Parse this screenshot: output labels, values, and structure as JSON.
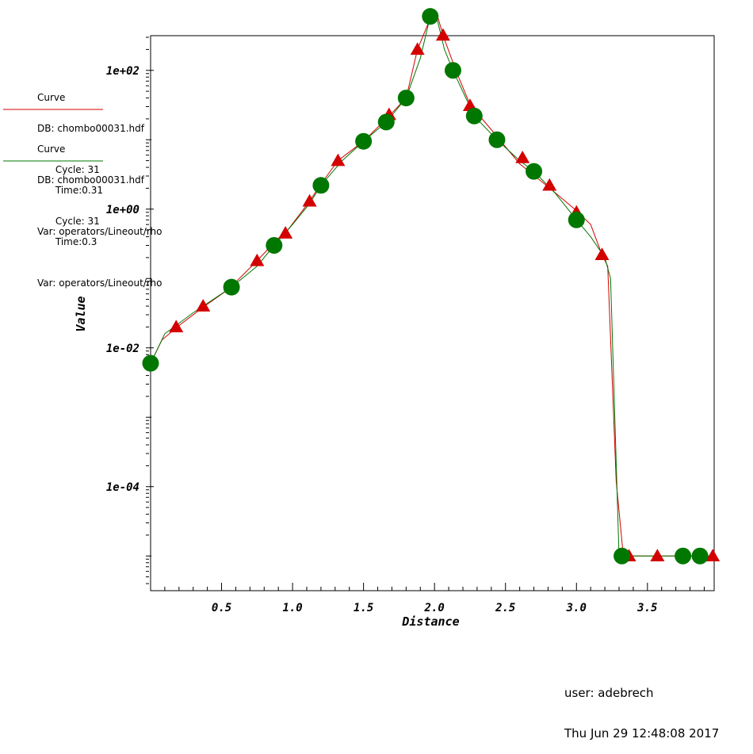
{
  "legend": {
    "entries": [
      {
        "title": "Curve",
        "db": "DB: chombo00031.hdf",
        "cycle": "Cycle: 31",
        "time": "Time:0.31",
        "var": "Var: operators/Lineout/rho",
        "color": "#d40000"
      },
      {
        "title": "Curve",
        "db": "DB: chombo00031.hdf",
        "cycle": "Cycle: 31",
        "time": "Time:0.3",
        "var": "Var: operators/Lineout/rho",
        "color": "#007700"
      }
    ]
  },
  "footer": {
    "user": "user: adebrech",
    "timestamp": "Thu Jun 29 12:48:08 2017"
  },
  "chart_data": {
    "type": "line",
    "xlabel": "Distance",
    "ylabel": "Value",
    "xlim": [
      0.0,
      3.97
    ],
    "ylim_log10": [
      -5.5,
      2.5
    ],
    "y_scale": "log",
    "x_ticks": [
      "0.5",
      "1.0",
      "1.5",
      "2.0",
      "2.5",
      "3.0",
      "3.5"
    ],
    "x_tick_values": [
      0.5,
      1.0,
      1.5,
      2.0,
      2.5,
      3.0,
      3.5
    ],
    "y_ticks": [
      "1e+02",
      "1e+00",
      "1e-02",
      "1e-04"
    ],
    "y_tick_values": [
      100,
      1,
      0.01,
      0.0001
    ],
    "series": [
      {
        "color": "#d40000",
        "marker": "triangle",
        "line": [
          [
            0.0,
            0.006
          ],
          [
            0.08,
            0.013
          ],
          [
            0.2,
            0.021
          ],
          [
            0.38,
            0.04
          ],
          [
            0.55,
            0.07
          ],
          [
            0.75,
            0.18
          ],
          [
            0.9,
            0.38
          ],
          [
            0.95,
            0.45
          ],
          [
            1.12,
            1.3
          ],
          [
            1.2,
            2.3
          ],
          [
            1.32,
            5
          ],
          [
            1.5,
            9.5
          ],
          [
            1.68,
            22
          ],
          [
            1.8,
            40
          ],
          [
            1.88,
            200
          ],
          [
            1.97,
            560
          ],
          [
            2.02,
            620
          ],
          [
            2.06,
            320
          ],
          [
            2.15,
            100
          ],
          [
            2.25,
            32
          ],
          [
            2.4,
            14
          ],
          [
            2.6,
            4.5
          ],
          [
            2.8,
            2.1
          ],
          [
            3.0,
            0.95
          ],
          [
            3.1,
            0.6
          ],
          [
            3.18,
            0.22
          ],
          [
            3.22,
            0.15
          ],
          [
            3.28,
            0.00012
          ],
          [
            3.33,
            1e-05
          ],
          [
            3.6,
            1e-05
          ],
          [
            3.97,
            1e-05
          ]
        ],
        "markers": [
          [
            0.18,
            0.02
          ],
          [
            0.37,
            0.04
          ],
          [
            0.75,
            0.18
          ],
          [
            0.95,
            0.45
          ],
          [
            1.12,
            1.3
          ],
          [
            1.32,
            5
          ],
          [
            1.68,
            23
          ],
          [
            1.88,
            200
          ],
          [
            2.06,
            320
          ],
          [
            2.25,
            31
          ],
          [
            2.62,
            5.5
          ],
          [
            2.81,
            2.2
          ],
          [
            3.0,
            0.9
          ],
          [
            3.18,
            0.22
          ],
          [
            3.37,
            1e-05
          ],
          [
            3.57,
            1e-05
          ],
          [
            3.96,
            1e-05
          ]
        ]
      },
      {
        "color": "#007700",
        "marker": "circle",
        "line": [
          [
            0.0,
            0.006
          ],
          [
            0.1,
            0.016
          ],
          [
            0.3,
            0.032
          ],
          [
            0.57,
            0.075
          ],
          [
            0.75,
            0.15
          ],
          [
            0.87,
            0.3
          ],
          [
            1.0,
            0.6
          ],
          [
            1.12,
            1.2
          ],
          [
            1.2,
            2.2
          ],
          [
            1.35,
            5
          ],
          [
            1.5,
            9.5
          ],
          [
            1.66,
            18
          ],
          [
            1.8,
            40
          ],
          [
            1.9,
            150
          ],
          [
            1.97,
            600
          ],
          [
            2.02,
            530
          ],
          [
            2.07,
            200
          ],
          [
            2.13,
            100
          ],
          [
            2.28,
            22
          ],
          [
            2.44,
            10
          ],
          [
            2.6,
            5
          ],
          [
            2.7,
            3.5
          ],
          [
            2.85,
            1.7
          ],
          [
            3.0,
            0.7
          ],
          [
            3.1,
            0.4
          ],
          [
            3.2,
            0.2
          ],
          [
            3.24,
            0.1
          ],
          [
            3.3,
            1e-05
          ],
          [
            3.6,
            1e-05
          ],
          [
            3.97,
            1e-05
          ]
        ],
        "markers": [
          [
            0.0,
            0.006
          ],
          [
            0.57,
            0.075
          ],
          [
            0.87,
            0.3
          ],
          [
            1.2,
            2.2
          ],
          [
            1.5,
            9.5
          ],
          [
            1.66,
            18
          ],
          [
            1.8,
            40
          ],
          [
            1.97,
            600
          ],
          [
            2.13,
            100
          ],
          [
            2.28,
            22
          ],
          [
            2.44,
            10
          ],
          [
            2.7,
            3.5
          ],
          [
            3.0,
            0.7
          ],
          [
            3.32,
            1e-05
          ],
          [
            3.75,
            1e-05
          ],
          [
            3.87,
            1e-05
          ]
        ]
      }
    ]
  }
}
